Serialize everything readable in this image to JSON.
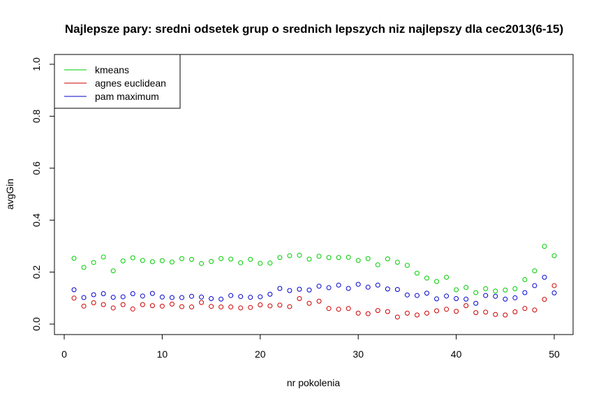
{
  "chart_data": {
    "type": "scatter",
    "title": "Najlepsze pary: sredni odsetek grup o srednich lepszych niz najlepszy dla cec2013(6-15)",
    "xlabel": "nr pokolenia",
    "ylabel": "avgGin",
    "xlim": [
      1,
      50
    ],
    "ylim": [
      0,
      1
    ],
    "x_ticks": [
      "0",
      "10",
      "20",
      "30",
      "40",
      "50"
    ],
    "y_ticks": [
      "0.0",
      "0.2",
      "0.4",
      "0.6",
      "0.8",
      "1.0"
    ],
    "grid": false,
    "legend_position": "top-left",
    "x": [
      1,
      2,
      3,
      4,
      5,
      6,
      7,
      8,
      9,
      10,
      11,
      12,
      13,
      14,
      15,
      16,
      17,
      18,
      19,
      20,
      21,
      22,
      23,
      24,
      25,
      26,
      27,
      28,
      29,
      30,
      31,
      32,
      33,
      34,
      35,
      36,
      37,
      38,
      39,
      40,
      41,
      42,
      43,
      44,
      45,
      46,
      47,
      48,
      49,
      50
    ],
    "series": [
      {
        "name": "kmeans",
        "color": "#00cd00",
        "values": [
          0.253,
          0.218,
          0.237,
          0.258,
          0.205,
          0.243,
          0.255,
          0.245,
          0.24,
          0.244,
          0.239,
          0.252,
          0.249,
          0.233,
          0.241,
          0.252,
          0.25,
          0.236,
          0.249,
          0.234,
          0.235,
          0.256,
          0.263,
          0.265,
          0.25,
          0.261,
          0.256,
          0.256,
          0.257,
          0.245,
          0.252,
          0.228,
          0.251,
          0.238,
          0.226,
          0.196,
          0.177,
          0.164,
          0.18,
          0.132,
          0.141,
          0.121,
          0.136,
          0.127,
          0.131,
          0.136,
          0.171,
          0.205,
          0.299,
          0.263
        ]
      },
      {
        "name": "agnes euclidean",
        "color": "#cd0000",
        "values": [
          0.1,
          0.069,
          0.082,
          0.075,
          0.062,
          0.075,
          0.058,
          0.075,
          0.071,
          0.069,
          0.077,
          0.067,
          0.066,
          0.083,
          0.068,
          0.066,
          0.066,
          0.062,
          0.064,
          0.074,
          0.07,
          0.073,
          0.067,
          0.098,
          0.08,
          0.088,
          0.06,
          0.057,
          0.06,
          0.042,
          0.04,
          0.052,
          0.048,
          0.027,
          0.042,
          0.035,
          0.042,
          0.051,
          0.057,
          0.049,
          0.071,
          0.044,
          0.046,
          0.037,
          0.035,
          0.047,
          0.06,
          0.054,
          0.095,
          0.148
        ]
      },
      {
        "name": "pam maximum",
        "color": "#0000cd",
        "values": [
          0.132,
          0.102,
          0.113,
          0.117,
          0.103,
          0.105,
          0.117,
          0.108,
          0.118,
          0.104,
          0.102,
          0.102,
          0.107,
          0.104,
          0.098,
          0.096,
          0.11,
          0.106,
          0.103,
          0.105,
          0.115,
          0.137,
          0.129,
          0.134,
          0.131,
          0.146,
          0.14,
          0.15,
          0.137,
          0.153,
          0.142,
          0.15,
          0.135,
          0.133,
          0.112,
          0.11,
          0.119,
          0.097,
          0.108,
          0.098,
          0.096,
          0.08,
          0.11,
          0.107,
          0.096,
          0.101,
          0.121,
          0.148,
          0.18,
          0.12
        ]
      }
    ]
  }
}
